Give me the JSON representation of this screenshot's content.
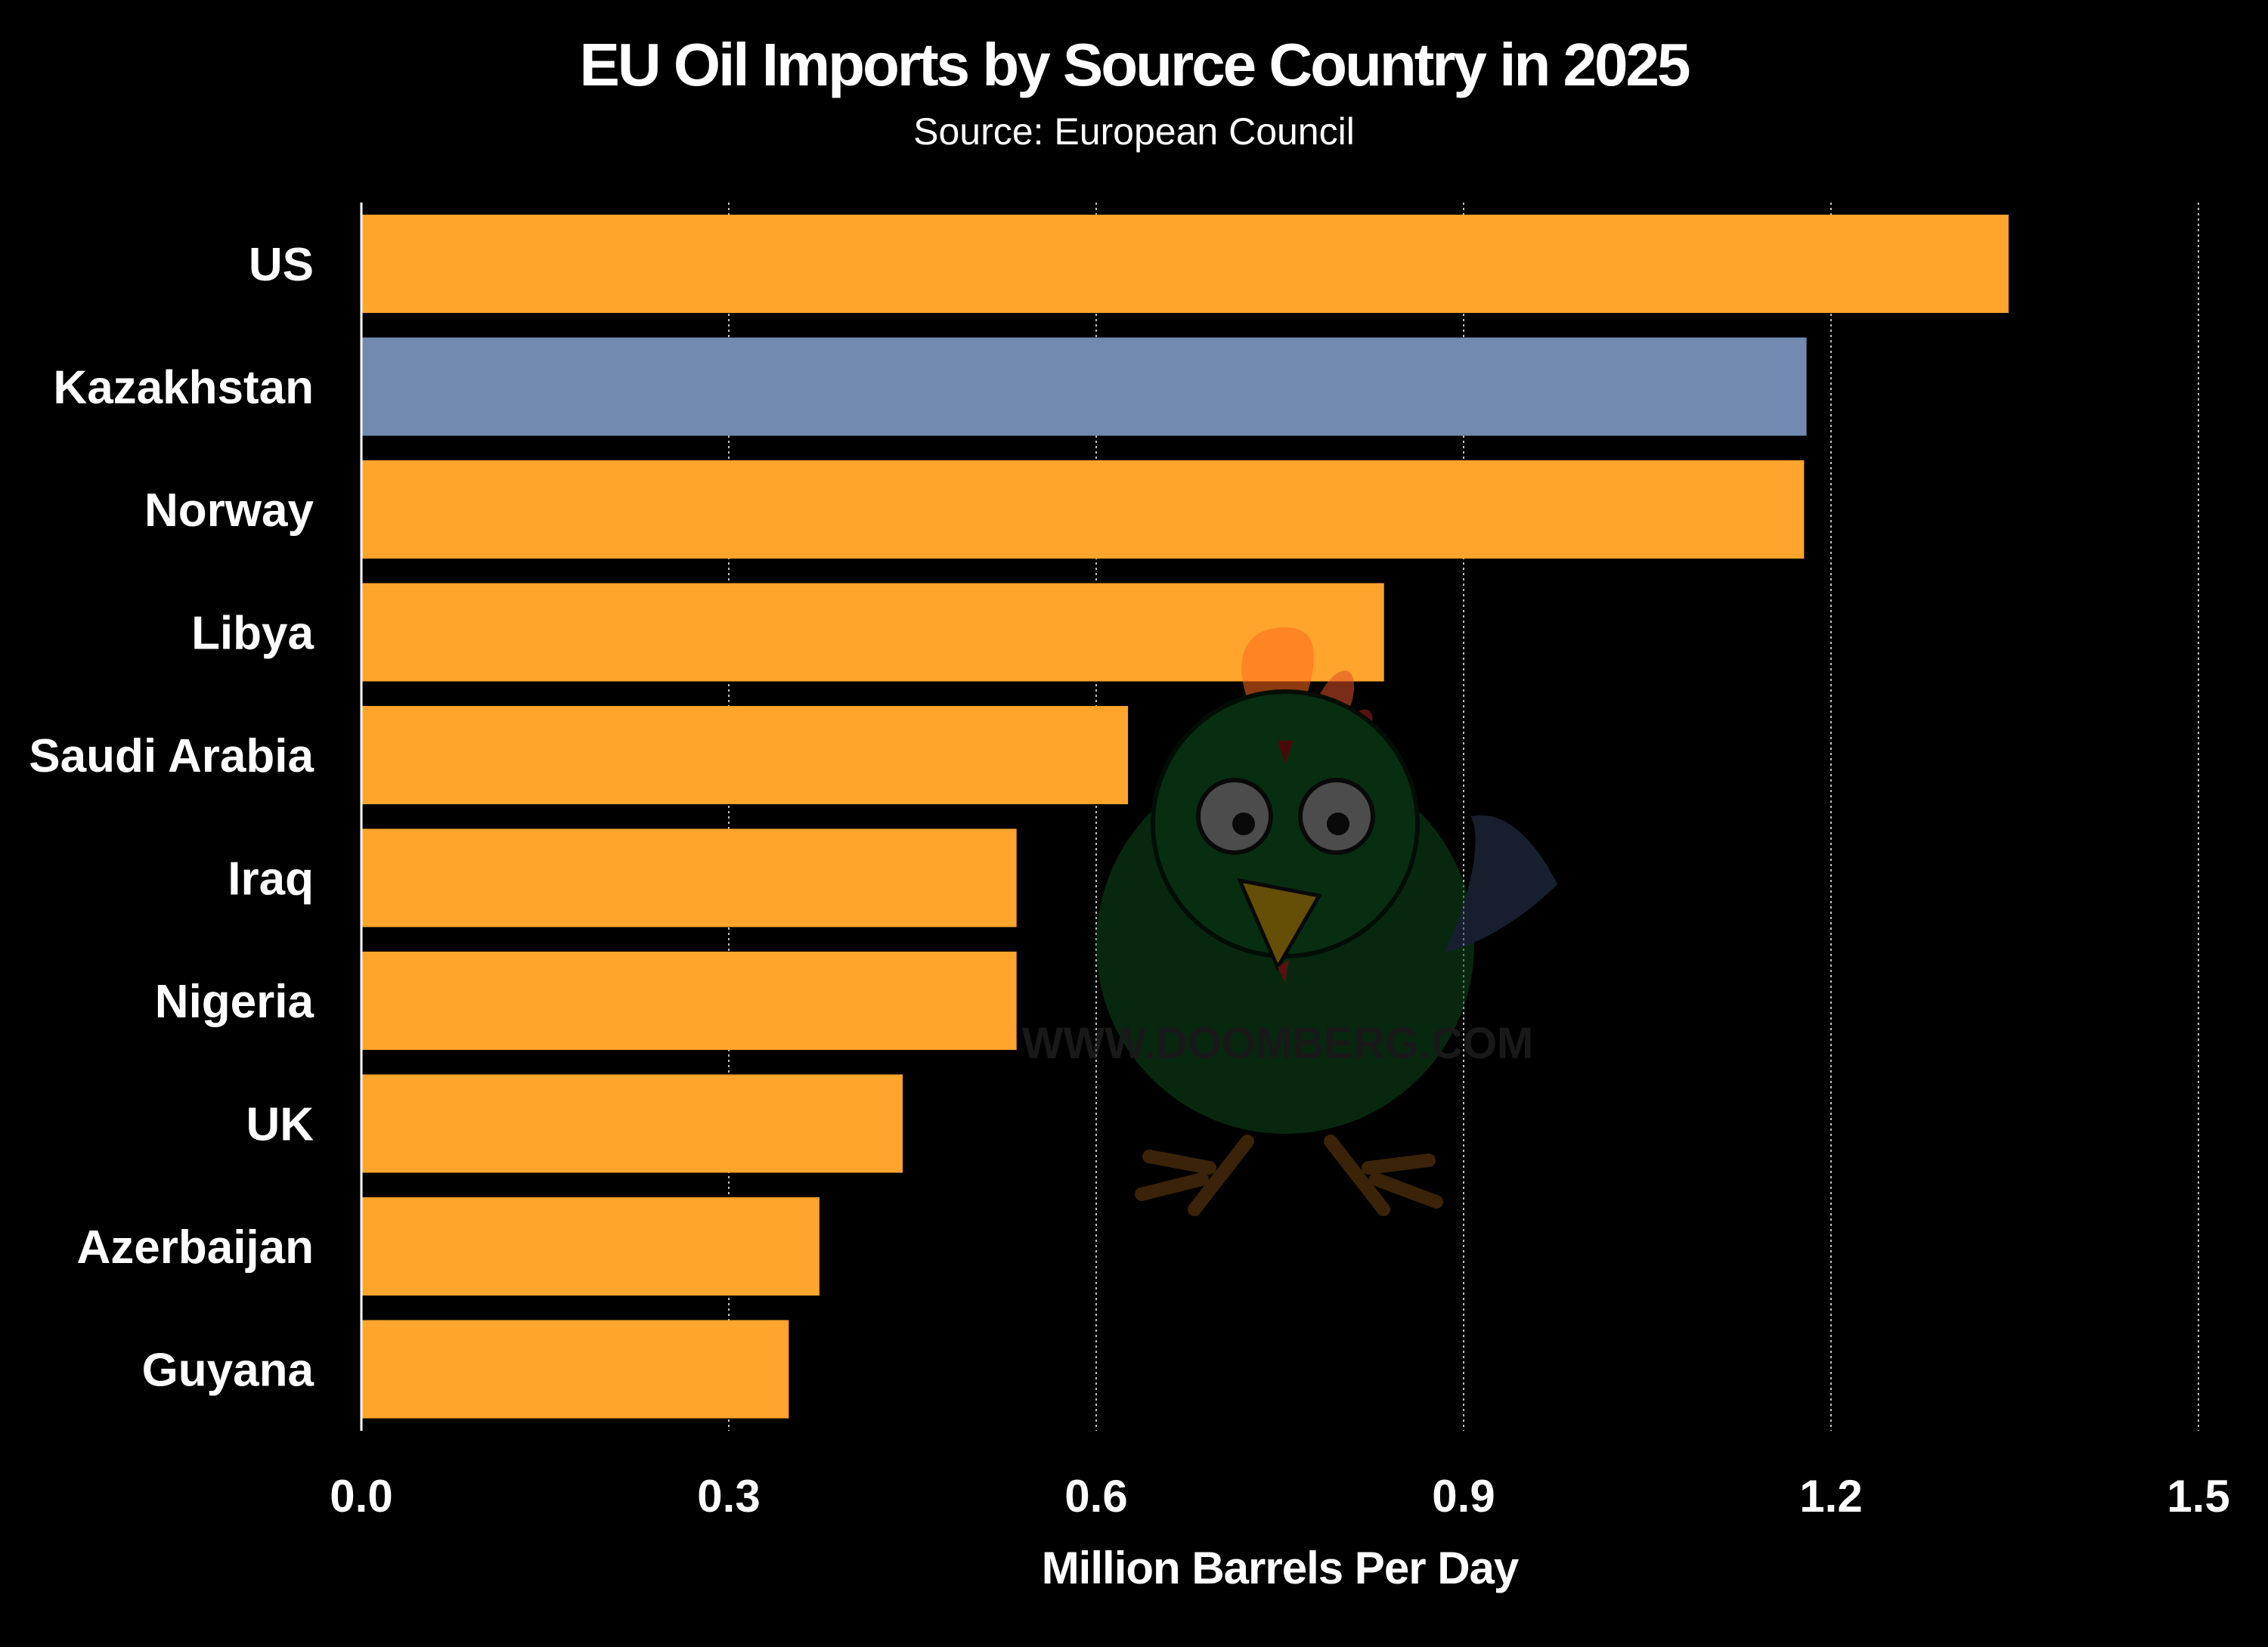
{
  "chart_data": {
    "type": "bar",
    "orientation": "horizontal",
    "title": "EU Oil Imports by Source Country in 2025",
    "subtitle": "Source: European Council",
    "xlabel": "Million Barrels Per Day",
    "ylabel": "",
    "xlim": [
      0,
      1.5
    ],
    "xticks": [
      "0.0",
      "0.3",
      "0.6",
      "0.9",
      "1.2",
      "1.5"
    ],
    "grid": "vertical dotted",
    "categories": [
      "US",
      "Kazakhstan",
      "Norway",
      "Libya",
      "Saudi Arabia",
      "Iraq",
      "Nigeria",
      "UK",
      "Azerbaijan",
      "Guyana"
    ],
    "values": [
      1.345,
      1.18,
      1.178,
      0.835,
      0.626,
      0.535,
      0.535,
      0.442,
      0.374,
      0.349
    ],
    "colors": {
      "default": "#FFA42C",
      "highlight": "#7289B0",
      "highlight_category": "Kazakhstan",
      "background": "#000000"
    }
  },
  "watermark": {
    "text": "WWW.DOOMBERG.COM",
    "icon": "chicken-mascot-icon"
  }
}
